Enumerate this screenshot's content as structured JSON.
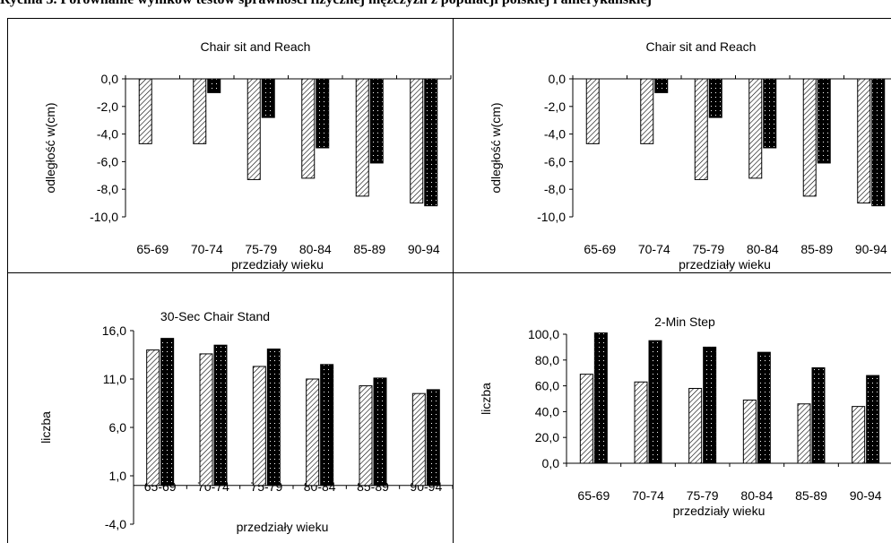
{
  "header": {
    "text": "Rycina 3. Porównanie wyników testów sprawności fizycznej mężczyzn z populacji polskiej i amerykańskiej"
  },
  "colors": {
    "bar_a_fill": "#ffffff",
    "bar_a_pattern": "diagonal-hatch",
    "bar_b_fill": "#000000",
    "bar_b_pattern": "white-dots"
  },
  "chart_data": [
    {
      "type": "bar",
      "title": "Chair sit and Reach",
      "xlabel": "przedziały wieku",
      "ylabel": "odległość w(cm)",
      "categories": [
        "65-69",
        "70-74",
        "75-79",
        "80-84",
        "85-89",
        "90-94"
      ],
      "ylim": [
        -10,
        0
      ],
      "yticks": [
        0,
        -2,
        -4,
        -6,
        -8,
        -10
      ],
      "ytick_labels": [
        "0,0",
        "-2,0",
        "-4,0",
        "-6,0",
        "-8,0",
        "-10,0"
      ],
      "series": [
        {
          "pattern": "hatched",
          "values": [
            -4.7,
            -4.7,
            -7.3,
            -7.2,
            -8.5,
            -9.0
          ]
        },
        {
          "pattern": "dotted-black",
          "values": [
            0,
            -1.0,
            -2.8,
            -5.0,
            -6.1,
            -9.2
          ]
        }
      ]
    },
    {
      "type": "bar",
      "title": "Chair sit and Reach",
      "xlabel": "przedziały wieku",
      "ylabel": "odległość w(cm)",
      "categories": [
        "65-69",
        "70-74",
        "75-79",
        "80-84",
        "85-89",
        "90-94"
      ],
      "ylim": [
        -10,
        0
      ],
      "yticks": [
        0,
        -2,
        -4,
        -6,
        -8,
        -10
      ],
      "ytick_labels": [
        "0,0",
        "-2,0",
        "-4,0",
        "-6,0",
        "-8,0",
        "-10,0"
      ],
      "series": [
        {
          "pattern": "hatched",
          "values": [
            -4.7,
            -4.7,
            -7.3,
            -7.2,
            -8.5,
            -9.0
          ]
        },
        {
          "pattern": "dotted-black",
          "values": [
            0,
            -1.0,
            -2.8,
            -5.0,
            -6.1,
            -9.2
          ]
        }
      ]
    },
    {
      "type": "bar",
      "title": "30-Sec Chair Stand",
      "xlabel": "przedziały wieku",
      "ylabel": "liczba",
      "categories": [
        "65-69",
        "70-74",
        "75-79",
        "80-84",
        "85-89",
        "90-94"
      ],
      "ylim": [
        -4,
        16
      ],
      "yticks": [
        16,
        11,
        6,
        1,
        -4
      ],
      "ytick_labels": [
        "16,0",
        "11,0",
        "6,0",
        "1,0",
        "-4,0"
      ],
      "series": [
        {
          "pattern": "hatched",
          "values": [
            14.0,
            13.6,
            12.3,
            11.0,
            10.3,
            9.5
          ]
        },
        {
          "pattern": "dotted-black",
          "values": [
            15.2,
            14.5,
            14.1,
            12.5,
            11.1,
            9.9
          ]
        }
      ]
    },
    {
      "type": "bar",
      "title": "2-Min Step",
      "xlabel": "przedziały wieku",
      "ylabel": "liczba",
      "categories": [
        "65-69",
        "70-74",
        "75-79",
        "80-84",
        "85-89",
        "90-94"
      ],
      "ylim": [
        0,
        100
      ],
      "yticks": [
        100,
        80,
        60,
        40,
        20,
        0
      ],
      "ytick_labels": [
        "100,0",
        "80,0",
        "60,0",
        "40,0",
        "20,0",
        "0,0"
      ],
      "series": [
        {
          "pattern": "hatched",
          "values": [
            69,
            63,
            58,
            49,
            46,
            44
          ]
        },
        {
          "pattern": "dotted-black",
          "values": [
            101,
            95,
            90,
            86,
            74,
            68
          ]
        }
      ]
    }
  ]
}
